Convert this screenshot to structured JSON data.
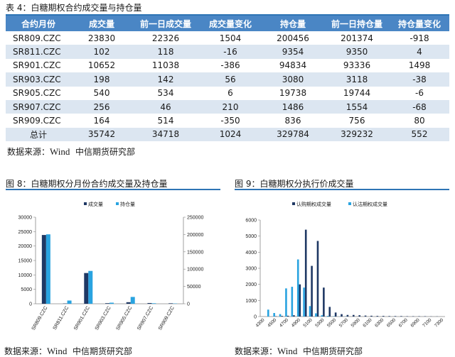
{
  "table": {
    "caption": "表 4：白糖期权合约成交量与持仓量",
    "headers": [
      "合约月份",
      "成交量",
      "前一日成交量",
      "成交量变化",
      "持仓量",
      "前一日持仓量",
      "持仓量变化"
    ],
    "rows": [
      [
        "SR809.CZC",
        "23830",
        "22326",
        "1504",
        "200456",
        "201374",
        "-918"
      ],
      [
        "SR811.CZC",
        "102",
        "118",
        "-16",
        "9354",
        "9350",
        "4"
      ],
      [
        "SR901.CZC",
        "10652",
        "11038",
        "-386",
        "94834",
        "93336",
        "1498"
      ],
      [
        "SR903.CZC",
        "198",
        "142",
        "56",
        "3080",
        "3118",
        "-38"
      ],
      [
        "SR905.CZC",
        "540",
        "534",
        "6",
        "19738",
        "19744",
        "-6"
      ],
      [
        "SR907.CZC",
        "256",
        "46",
        "210",
        "1486",
        "1554",
        "-68"
      ],
      [
        "SR909.CZC",
        "164",
        "514",
        "-350",
        "836",
        "756",
        "80"
      ],
      [
        "总计",
        "35742",
        "34718",
        "1024",
        "329784",
        "329232",
        "552"
      ]
    ],
    "source_prefix": "数据来源：",
    "source_wind": "Wind",
    "source_suffix": "中信期货研究部"
  },
  "fig8": {
    "caption": "图 8：白糖期权分月份合约成交量及持仓量",
    "source_prefix": "数据来源：",
    "source_wind": "Wind",
    "source_suffix": "中信期货研究部"
  },
  "fig9": {
    "caption": "图 9：白糖期权分执行价成交量",
    "source_prefix": "数据来源：",
    "source_wind": "Wind",
    "source_suffix": "中信期货研究部"
  },
  "colors": {
    "dark_series": "#1f3864",
    "light_series": "#29a3e0",
    "header_bg": "#4a86c5",
    "alt_row": "#dce6f1",
    "rule": "#2e74b5"
  },
  "chart_data": [
    {
      "type": "bar",
      "categories": [
        "SR809.CZC",
        "SR811.CZC",
        "SR901.CZC",
        "SR903.CZC",
        "SR905.CZC",
        "SR907.CZC",
        "SR909.CZC"
      ],
      "series": [
        {
          "name": "成交量",
          "axis": "left",
          "values": [
            23830,
            102,
            10652,
            198,
            540,
            256,
            164
          ]
        },
        {
          "name": "持仓量",
          "axis": "right",
          "values": [
            200456,
            9354,
            94834,
            3080,
            19738,
            1486,
            836
          ]
        }
      ],
      "ylim_left": [
        0,
        30000
      ],
      "yticks_left": [
        "0",
        "5000",
        "10000",
        "15000",
        "20000",
        "25000",
        "30000"
      ],
      "ylim_right": [
        0,
        250000
      ],
      "yticks_right": [
        "0",
        "50000",
        "100000",
        "150000",
        "200000",
        "250000"
      ],
      "legend": "top-center",
      "grid": false
    },
    {
      "type": "bar",
      "categories": [
        "4300",
        "4400",
        "4500",
        "4600",
        "4700",
        "4800",
        "4900",
        "5000",
        "5100",
        "5200",
        "5300",
        "5400",
        "5500",
        "5600",
        "5700",
        "5800",
        "5900",
        "6000",
        "6100",
        "6200",
        "6300",
        "6400",
        "6500",
        "6600",
        "6700",
        "6800",
        "6900",
        "7000",
        "7100",
        "7200",
        "7300"
      ],
      "xticks": [
        "4300",
        "4500",
        "4700",
        "4900",
        "5100",
        "5300",
        "5500",
        "5700",
        "5900",
        "6100",
        "6300",
        "6500",
        "6700",
        "6900",
        "7100",
        "7300"
      ],
      "series": [
        {
          "name": "认购期权成交量",
          "values": [
            0,
            0,
            20,
            40,
            50,
            80,
            2000,
            5400,
            3150,
            4700,
            1800,
            600,
            250,
            150,
            100,
            100,
            80,
            60,
            50,
            40,
            40,
            30,
            30,
            30,
            20,
            20,
            20,
            20,
            10,
            10,
            0
          ]
        },
        {
          "name": "认沽期权成交量",
          "values": [
            0,
            430,
            220,
            150,
            1750,
            1850,
            3550,
            1800,
            650,
            200,
            80,
            40,
            20,
            10,
            10,
            0,
            0,
            0,
            0,
            0,
            0,
            0,
            0,
            0,
            0,
            0,
            0,
            0,
            0,
            0,
            0
          ]
        }
      ],
      "ylim": [
        0,
        6000
      ],
      "yticks": [
        "0",
        "1000",
        "2000",
        "3000",
        "4000",
        "5000",
        "6000"
      ],
      "legend": "top-center",
      "grid": false
    }
  ]
}
